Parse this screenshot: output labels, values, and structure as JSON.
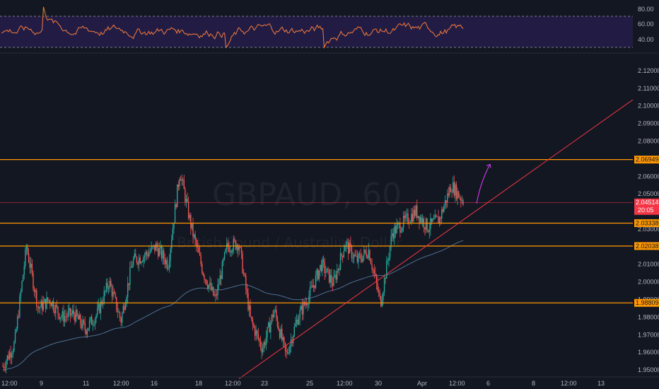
{
  "chart_data": {
    "type": "candlestick",
    "symbol": "GBPAUD, 60",
    "watermark_line2": "British Pound / Australian Dollar",
    "x_ticks": [
      "12:00",
      "9",
      "11",
      "12:00",
      "16",
      "18",
      "12:00",
      "23",
      "25",
      "12:00",
      "30",
      "Apr",
      "12:00",
      "6",
      "8",
      "12:00",
      "13"
    ],
    "y_ticks": [
      "2.12000",
      "2.11000",
      "2.10000",
      "2.09000",
      "2.08000",
      "2.06000",
      "2.05000",
      "2.03000",
      "2.01000",
      "2.00000",
      "1.99000",
      "1.98000",
      "1.97000",
      "1.96000",
      "1.95000"
    ],
    "ylim": [
      1.946,
      2.128
    ],
    "last_price": "2.04514",
    "countdown": "20:05",
    "horizontal_levels": [
      {
        "label": "2.06949",
        "value": 2.06949,
        "color": "#ff9800"
      },
      {
        "label": "2.03338",
        "value": 2.03338,
        "color": "#ff9800"
      },
      {
        "label": "2.02038",
        "value": 2.02038,
        "color": "#ff9800"
      },
      {
        "label": "1.98809",
        "value": 1.98809,
        "color": "#ff9800"
      }
    ],
    "trendline": {
      "color": "#f23645",
      "from_value": 1.945,
      "to_value": 2.1035
    },
    "projection_arrow": {
      "color": "#e040fb",
      "from_value": 2.0445,
      "to_value": 2.0668
    },
    "moving_average": {
      "color": "#4f6f91",
      "from_value": 1.95,
      "to_value": 2.0165
    },
    "candles": {
      "count": 410,
      "up_color": "#26a69a",
      "down_color": "#ef5350",
      "anchors": [
        1.952,
        1.965,
        2.02,
        1.985,
        1.99,
        1.98,
        1.982,
        1.973,
        1.982,
        2.0,
        1.978,
        2.012,
        2.015,
        2.02,
        2.01,
        2.063,
        2.03,
        2.005,
        1.99,
        2.02,
        2.022,
        1.978,
        1.962,
        1.984,
        1.958,
        1.98,
        1.993,
        2.01,
        1.999,
        2.022,
        2.012,
        2.018,
        1.988,
        2.028,
        2.034,
        2.04,
        2.031,
        2.036,
        2.055,
        2.046
      ]
    },
    "rsi": {
      "yticks": [
        "80.00",
        "60.00",
        "40.00"
      ],
      "levels": [
        70,
        30
      ],
      "range": [
        20,
        85
      ],
      "line_color": "#f57c3b",
      "band_color": "#2a1f52"
    }
  }
}
